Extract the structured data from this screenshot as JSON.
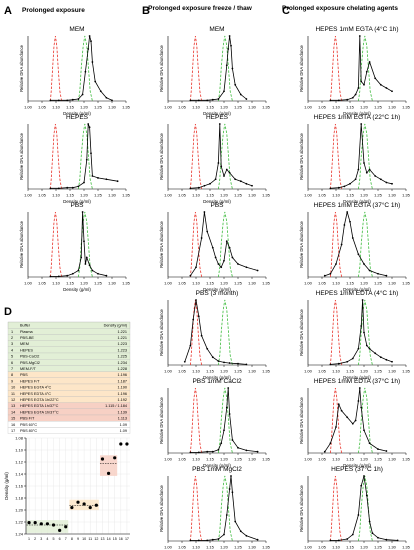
{
  "panels": [
    {
      "letter": "A",
      "title": "Prolonged exposure"
    },
    {
      "letter": "B",
      "title": "Prolonged exposure freeze / thaw"
    },
    {
      "letter": "C",
      "title": "Prolonged exposure chelating agents"
    },
    {
      "letter": "D",
      "title": ""
    }
  ],
  "axes": {
    "xlabel": "Density (g/ml)",
    "ylabel": "Relative DNA abundance",
    "xticks": [
      "1.00",
      "1.05",
      "1.10",
      "1.15",
      "1.20",
      "1.25",
      "1.30",
      "1.35"
    ],
    "xlim": [
      1.0,
      1.35
    ]
  },
  "colors": {
    "red": "#e8332a",
    "green": "#3dbb3d",
    "data": "#000000",
    "table_green": "#e2efd6",
    "table_orange": "#fde6c8",
    "table_red": "#f7d0c4"
  },
  "table": {
    "headers": [
      "",
      "Buffer",
      "Density (g/ml)"
    ],
    "rows": [
      {
        "n": "1",
        "buffer": "Plasma",
        "density": "1.221",
        "group": "green"
      },
      {
        "n": "2",
        "buffer": "PBS-BE",
        "density": "1.221",
        "group": "green"
      },
      {
        "n": "3",
        "buffer": "MEM",
        "density": "1.223",
        "group": "green"
      },
      {
        "n": "4",
        "buffer": "HEPES",
        "density": "1.223",
        "group": "green"
      },
      {
        "n": "5",
        "buffer": "PBS-CaCl2",
        "density": "1.225",
        "group": "green"
      },
      {
        "n": "6",
        "buffer": "PBS-MgCl2",
        "density": "1.234",
        "group": "green"
      },
      {
        "n": "7",
        "buffer": "MEM-F/T",
        "density": "1.228",
        "group": "green"
      },
      {
        "n": "8",
        "buffer": "PBS",
        "density": "1.196",
        "group": "orange"
      },
      {
        "n": "9",
        "buffer": "HEPES F/T",
        "density": "1.187",
        "group": "orange"
      },
      {
        "n": "10",
        "buffer": "HEPES EGTA 4°C",
        "density": "1.190",
        "group": "orange"
      },
      {
        "n": "11",
        "buffer": "HEPES EDTA 4°C",
        "density": "1.196",
        "group": "orange"
      },
      {
        "n": "12",
        "buffer": "HEPES EGTA 1h/22°C",
        "density": "1.192",
        "group": "orange"
      },
      {
        "n": "13",
        "buffer": "HEPES EDTA 1h/37°C",
        "density": "1.115 / 1.184",
        "group": "red"
      },
      {
        "n": "14",
        "buffer": "HEPES EGTA 1h/37°C",
        "density": "1.139",
        "group": "red"
      },
      {
        "n": "15",
        "buffer": "PBS F/T",
        "density": "1.113",
        "group": "red"
      },
      {
        "n": "16",
        "buffer": "PBS 60°C",
        "density": "1.09",
        "group": ""
      },
      {
        "n": "17",
        "buffer": "PBS 80°C",
        "density": "1.09",
        "group": ""
      }
    ]
  },
  "chart_data": [
    {
      "type": "line",
      "panel": "A",
      "title": "MEM",
      "xlabel": "Density (g/ml)",
      "ylabel": "Relative DNA abundance",
      "x": [
        1.08,
        1.11,
        1.14,
        1.16,
        1.18,
        1.195,
        1.205,
        1.215,
        1.22,
        1.225,
        1.23,
        1.24,
        1.26,
        1.28,
        1.3
      ],
      "y": [
        0.01,
        0.01,
        0.01,
        0.02,
        0.03,
        0.1,
        0.45,
        0.8,
        1.0,
        0.92,
        0.6,
        0.3,
        0.15,
        0.05,
        0.01
      ]
    },
    {
      "type": "line",
      "panel": "A",
      "title": "HEPES",
      "xlabel": "Density (g/ml)",
      "ylabel": "Relative DNA abundance",
      "x": [
        1.08,
        1.11,
        1.14,
        1.16,
        1.18,
        1.2,
        1.21,
        1.215,
        1.22,
        1.225,
        1.23,
        1.25,
        1.28,
        1.32
      ],
      "y": [
        0.01,
        0.01,
        0.02,
        0.02,
        0.04,
        0.1,
        0.45,
        1.0,
        0.95,
        0.55,
        0.2,
        0.17,
        0.15,
        0.12
      ]
    },
    {
      "type": "line",
      "panel": "A",
      "title": "PBS",
      "xlabel": "Density (g/ml)",
      "ylabel": "Relative DNA abundance",
      "x": [
        1.08,
        1.11,
        1.14,
        1.16,
        1.18,
        1.19,
        1.195,
        1.2,
        1.205,
        1.21,
        1.22,
        1.23,
        1.25,
        1.28
      ],
      "y": [
        0.01,
        0.01,
        0.02,
        0.05,
        0.1,
        0.3,
        1.0,
        0.55,
        0.2,
        0.3,
        0.18,
        0.1,
        0.05,
        0.02
      ]
    },
    {
      "type": "line",
      "panel": "B",
      "title": "MEM",
      "xlabel": "Density (g/ml)",
      "ylabel": "Relative DNA abundance",
      "x": [
        1.08,
        1.11,
        1.14,
        1.16,
        1.18,
        1.2,
        1.21,
        1.215,
        1.22,
        1.225,
        1.23,
        1.24,
        1.26,
        1.28
      ],
      "y": [
        0.01,
        0.01,
        0.01,
        0.02,
        0.03,
        0.15,
        0.55,
        0.8,
        1.0,
        0.85,
        0.5,
        0.25,
        0.1,
        0.03
      ]
    },
    {
      "type": "line",
      "panel": "B",
      "title": "HEPES",
      "xlabel": "Density (g/ml)",
      "ylabel": "Relative DNA abundance",
      "x": [
        1.08,
        1.11,
        1.13,
        1.15,
        1.17,
        1.18,
        1.185,
        1.19,
        1.2,
        1.21,
        1.22,
        1.24,
        1.26,
        1.28,
        1.3
      ],
      "y": [
        0.01,
        0.02,
        0.05,
        0.08,
        0.15,
        0.4,
        1.0,
        0.35,
        0.2,
        0.3,
        0.25,
        0.15,
        0.12,
        0.08,
        0.05
      ]
    },
    {
      "type": "line",
      "panel": "B",
      "title": "PBS",
      "xlabel": "Density (g/ml)",
      "ylabel": "Relative DNA abundance",
      "x": [
        1.08,
        1.1,
        1.12,
        1.13,
        1.14,
        1.16,
        1.17,
        1.18,
        1.19,
        1.2,
        1.21,
        1.22,
        1.23,
        1.25,
        1.28,
        1.32
      ],
      "y": [
        0.02,
        0.15,
        0.6,
        1.0,
        0.7,
        0.45,
        0.3,
        0.2,
        0.15,
        0.25,
        0.55,
        0.45,
        0.3,
        0.2,
        0.15,
        0.1
      ]
    },
    {
      "type": "line",
      "panel": "B",
      "title": "PBS (3 month)",
      "xlabel": "Density (g/ml)",
      "ylabel": "Relative DNA abundance",
      "x": [
        1.06,
        1.08,
        1.09,
        1.1,
        1.11,
        1.12,
        1.14,
        1.16,
        1.18,
        1.2,
        1.22,
        1.25,
        1.28
      ],
      "y": [
        0.05,
        0.3,
        0.7,
        1.0,
        0.75,
        0.45,
        0.25,
        0.12,
        0.06,
        0.04,
        0.03,
        0.02,
        0.01
      ]
    },
    {
      "type": "line",
      "panel": "B",
      "title": "PBS 1mM CaCl2",
      "xlabel": "Density (g/ml)",
      "ylabel": "Relative DNA abundance",
      "x": [
        1.08,
        1.11,
        1.14,
        1.16,
        1.18,
        1.19,
        1.2,
        1.21,
        1.215,
        1.22,
        1.23,
        1.25,
        1.28,
        1.32
      ],
      "y": [
        0.01,
        0.01,
        0.02,
        0.02,
        0.05,
        0.15,
        0.35,
        0.7,
        1.0,
        0.6,
        0.2,
        0.08,
        0.04,
        0.02
      ]
    },
    {
      "type": "line",
      "panel": "B",
      "title": "PBS 1mM MgCl2",
      "xlabel": "Density (g/ml)",
      "ylabel": "Relative DNA abundance",
      "x": [
        1.08,
        1.11,
        1.14,
        1.16,
        1.18,
        1.2,
        1.21,
        1.22,
        1.225,
        1.23,
        1.24,
        1.26,
        1.28,
        1.32
      ],
      "y": [
        0.01,
        0.01,
        0.01,
        0.02,
        0.03,
        0.1,
        0.4,
        0.8,
        1.0,
        0.75,
        0.3,
        0.15,
        0.08,
        0.02
      ]
    },
    {
      "type": "line",
      "panel": "C",
      "title": "HEPES 1mM EGTA (4°C 1h)",
      "xlabel": "Density (g/ml)",
      "ylabel": "Relative DNA abundance",
      "x": [
        1.08,
        1.11,
        1.14,
        1.16,
        1.17,
        1.18,
        1.185,
        1.19,
        1.2,
        1.21,
        1.22,
        1.24,
        1.26,
        1.28,
        1.3
      ],
      "y": [
        0.01,
        0.01,
        0.02,
        0.05,
        0.1,
        0.2,
        1.0,
        0.3,
        0.25,
        0.45,
        0.6,
        0.35,
        0.25,
        0.2,
        0.15
      ]
    },
    {
      "type": "line",
      "panel": "C",
      "title": "HEPES 1mM EGTA (22°C 1h)",
      "xlabel": "Density (g/ml)",
      "ylabel": "Relative DNA abundance",
      "x": [
        1.08,
        1.11,
        1.13,
        1.15,
        1.17,
        1.18,
        1.19,
        1.2,
        1.21,
        1.22,
        1.24,
        1.26,
        1.28,
        1.3
      ],
      "y": [
        0.01,
        0.02,
        0.04,
        0.08,
        0.15,
        0.3,
        1.0,
        0.4,
        0.25,
        0.3,
        0.2,
        0.15,
        0.1,
        0.08
      ]
    },
    {
      "type": "line",
      "panel": "C",
      "title": "HEPES 1mM EGTA (37°C 1h)",
      "xlabel": "Density (g/ml)",
      "ylabel": "Relative DNA abundance",
      "x": [
        1.06,
        1.08,
        1.1,
        1.12,
        1.13,
        1.14,
        1.15,
        1.16,
        1.18,
        1.2,
        1.22,
        1.25,
        1.28
      ],
      "y": [
        0.02,
        0.05,
        0.2,
        0.5,
        0.8,
        1.0,
        0.85,
        0.6,
        0.35,
        0.2,
        0.1,
        0.05,
        0.02
      ]
    },
    {
      "type": "line",
      "panel": "C",
      "title": "HEPES 1mM EDTA (4°C 1h)",
      "xlabel": "Density (g/ml)",
      "ylabel": "Relative DNA abundance",
      "x": [
        1.08,
        1.11,
        1.14,
        1.16,
        1.18,
        1.19,
        1.195,
        1.2,
        1.21,
        1.22,
        1.24,
        1.26,
        1.28,
        1.3
      ],
      "y": [
        0.01,
        0.02,
        0.05,
        0.1,
        0.25,
        0.6,
        1.0,
        0.5,
        0.3,
        0.25,
        0.18,
        0.12,
        0.08,
        0.05
      ]
    },
    {
      "type": "line",
      "panel": "C",
      "title": "HEPES 1mM EDTA (37°C 1h)",
      "xlabel": "Density (g/ml)",
      "ylabel": "Relative DNA abundance",
      "x": [
        1.06,
        1.08,
        1.1,
        1.11,
        1.12,
        1.14,
        1.16,
        1.17,
        1.18,
        1.185,
        1.19,
        1.2,
        1.22,
        1.25,
        1.28
      ],
      "y": [
        0.02,
        0.15,
        0.4,
        0.75,
        0.65,
        0.55,
        0.45,
        0.5,
        0.8,
        1.0,
        0.7,
        0.35,
        0.15,
        0.06,
        0.03
      ]
    },
    {
      "type": "line",
      "panel": "C",
      "title": "HEPES (37°C 1h)",
      "xlabel": "Density (g/ml)",
      "ylabel": "Relative DNA abundance",
      "x": [
        1.08,
        1.11,
        1.14,
        1.16,
        1.18,
        1.19,
        1.2,
        1.21,
        1.22,
        1.23,
        1.25,
        1.28,
        1.32
      ],
      "y": [
        0.01,
        0.01,
        0.03,
        0.1,
        0.4,
        0.85,
        1.0,
        0.7,
        0.3,
        0.12,
        0.05,
        0.02,
        0.01
      ]
    },
    {
      "type": "scatter",
      "panel": "D",
      "title": "",
      "xlabel": "",
      "ylabel": "Density (g/ml)",
      "x": [
        1,
        2,
        3,
        4,
        5,
        6,
        7,
        8,
        9,
        10,
        11,
        12,
        13,
        14,
        15,
        16,
        17
      ],
      "y": [
        1.221,
        1.221,
        1.223,
        1.223,
        1.225,
        1.234,
        1.228,
        1.196,
        1.187,
        1.19,
        1.196,
        1.192,
        1.115,
        1.139,
        1.113,
        1.09,
        1.09
      ],
      "ylim": [
        1.24,
        1.08
      ],
      "yticks": [
        "1.08",
        "1.10",
        "1.12",
        "1.14",
        "1.16",
        "1.18",
        "1.20",
        "1.22",
        "1.24"
      ],
      "xticks": [
        "1",
        "2",
        "3",
        "4",
        "5",
        "6",
        "7",
        "8",
        "9",
        "10",
        "11",
        "12",
        "13",
        "14",
        "15",
        "16",
        "17"
      ]
    }
  ]
}
